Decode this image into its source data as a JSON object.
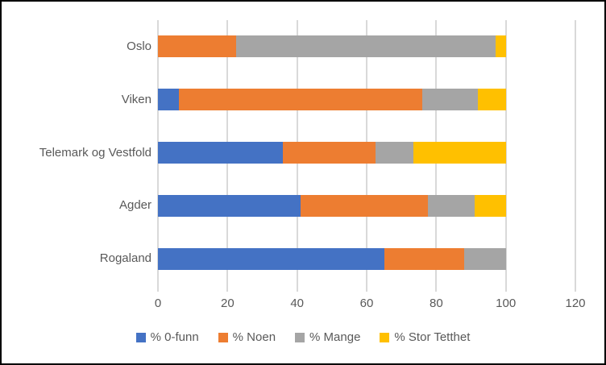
{
  "chart_data": {
    "type": "bar",
    "orientation": "horizontal",
    "stacked": true,
    "title": "",
    "xlabel": "",
    "ylabel": "",
    "categories": [
      "Oslo",
      "Viken",
      "Telemark og Vestfold",
      "Agder",
      "Rogaland"
    ],
    "series": [
      {
        "name": "% 0-funn",
        "color": "#4472C4",
        "values": [
          0,
          6,
          36,
          41,
          65
        ]
      },
      {
        "name": "% Noen",
        "color": "#ED7D31",
        "values": [
          22.5,
          70,
          26.5,
          36.5,
          23
        ]
      },
      {
        "name": "% Mange",
        "color": "#A5A5A5",
        "values": [
          74.5,
          16,
          11,
          13.5,
          12
        ]
      },
      {
        "name": "% Stor Tetthet",
        "color": "#FFC000",
        "values": [
          3,
          8,
          26.5,
          9,
          0
        ]
      }
    ],
    "xlim": [
      0,
      120
    ],
    "xticks": [
      "0",
      "20",
      "40",
      "60",
      "80",
      "100",
      "120"
    ],
    "grid": true,
    "legend_position": "bottom",
    "colors": {
      "text": "#595959",
      "gridline": "#D9D9D9",
      "background": "#FFFFFF",
      "frame_border": "#000000"
    }
  }
}
